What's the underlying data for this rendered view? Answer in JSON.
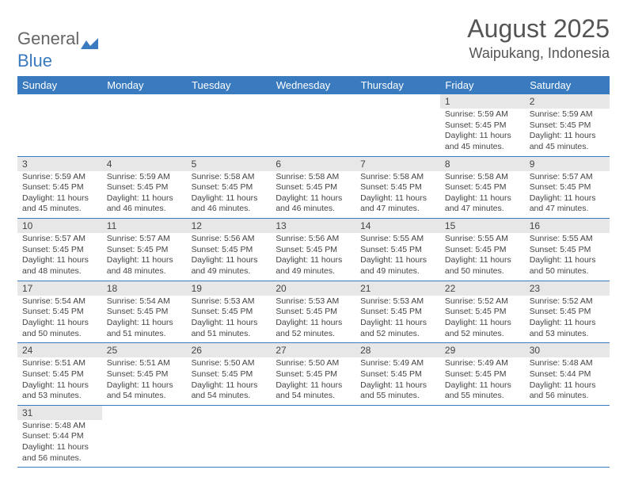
{
  "logo": {
    "text1": "General",
    "text2": "Blue"
  },
  "title": "August 2025",
  "location": "Waipukang, Indonesia",
  "colors": {
    "header_bg": "#3a7bbf",
    "header_text": "#ffffff",
    "daynum_bg": "#e7e7e7",
    "border": "#3a7bbf",
    "text": "#444444",
    "page_bg": "#ffffff"
  },
  "fonts": {
    "title_size": 32,
    "location_size": 18,
    "header_size": 13,
    "daynum_size": 12,
    "body_size": 10.5
  },
  "weekdays": [
    "Sunday",
    "Monday",
    "Tuesday",
    "Wednesday",
    "Thursday",
    "Friday",
    "Saturday"
  ],
  "weeks": [
    [
      null,
      null,
      null,
      null,
      null,
      {
        "n": "1",
        "sr": "5:59 AM",
        "ss": "5:45 PM",
        "dl": "11 hours and 45 minutes."
      },
      {
        "n": "2",
        "sr": "5:59 AM",
        "ss": "5:45 PM",
        "dl": "11 hours and 45 minutes."
      }
    ],
    [
      {
        "n": "3",
        "sr": "5:59 AM",
        "ss": "5:45 PM",
        "dl": "11 hours and 45 minutes."
      },
      {
        "n": "4",
        "sr": "5:59 AM",
        "ss": "5:45 PM",
        "dl": "11 hours and 46 minutes."
      },
      {
        "n": "5",
        "sr": "5:58 AM",
        "ss": "5:45 PM",
        "dl": "11 hours and 46 minutes."
      },
      {
        "n": "6",
        "sr": "5:58 AM",
        "ss": "5:45 PM",
        "dl": "11 hours and 46 minutes."
      },
      {
        "n": "7",
        "sr": "5:58 AM",
        "ss": "5:45 PM",
        "dl": "11 hours and 47 minutes."
      },
      {
        "n": "8",
        "sr": "5:58 AM",
        "ss": "5:45 PM",
        "dl": "11 hours and 47 minutes."
      },
      {
        "n": "9",
        "sr": "5:57 AM",
        "ss": "5:45 PM",
        "dl": "11 hours and 47 minutes."
      }
    ],
    [
      {
        "n": "10",
        "sr": "5:57 AM",
        "ss": "5:45 PM",
        "dl": "11 hours and 48 minutes."
      },
      {
        "n": "11",
        "sr": "5:57 AM",
        "ss": "5:45 PM",
        "dl": "11 hours and 48 minutes."
      },
      {
        "n": "12",
        "sr": "5:56 AM",
        "ss": "5:45 PM",
        "dl": "11 hours and 49 minutes."
      },
      {
        "n": "13",
        "sr": "5:56 AM",
        "ss": "5:45 PM",
        "dl": "11 hours and 49 minutes."
      },
      {
        "n": "14",
        "sr": "5:55 AM",
        "ss": "5:45 PM",
        "dl": "11 hours and 49 minutes."
      },
      {
        "n": "15",
        "sr": "5:55 AM",
        "ss": "5:45 PM",
        "dl": "11 hours and 50 minutes."
      },
      {
        "n": "16",
        "sr": "5:55 AM",
        "ss": "5:45 PM",
        "dl": "11 hours and 50 minutes."
      }
    ],
    [
      {
        "n": "17",
        "sr": "5:54 AM",
        "ss": "5:45 PM",
        "dl": "11 hours and 50 minutes."
      },
      {
        "n": "18",
        "sr": "5:54 AM",
        "ss": "5:45 PM",
        "dl": "11 hours and 51 minutes."
      },
      {
        "n": "19",
        "sr": "5:53 AM",
        "ss": "5:45 PM",
        "dl": "11 hours and 51 minutes."
      },
      {
        "n": "20",
        "sr": "5:53 AM",
        "ss": "5:45 PM",
        "dl": "11 hours and 52 minutes."
      },
      {
        "n": "21",
        "sr": "5:53 AM",
        "ss": "5:45 PM",
        "dl": "11 hours and 52 minutes."
      },
      {
        "n": "22",
        "sr": "5:52 AM",
        "ss": "5:45 PM",
        "dl": "11 hours and 52 minutes."
      },
      {
        "n": "23",
        "sr": "5:52 AM",
        "ss": "5:45 PM",
        "dl": "11 hours and 53 minutes."
      }
    ],
    [
      {
        "n": "24",
        "sr": "5:51 AM",
        "ss": "5:45 PM",
        "dl": "11 hours and 53 minutes."
      },
      {
        "n": "25",
        "sr": "5:51 AM",
        "ss": "5:45 PM",
        "dl": "11 hours and 54 minutes."
      },
      {
        "n": "26",
        "sr": "5:50 AM",
        "ss": "5:45 PM",
        "dl": "11 hours and 54 minutes."
      },
      {
        "n": "27",
        "sr": "5:50 AM",
        "ss": "5:45 PM",
        "dl": "11 hours and 54 minutes."
      },
      {
        "n": "28",
        "sr": "5:49 AM",
        "ss": "5:45 PM",
        "dl": "11 hours and 55 minutes."
      },
      {
        "n": "29",
        "sr": "5:49 AM",
        "ss": "5:45 PM",
        "dl": "11 hours and 55 minutes."
      },
      {
        "n": "30",
        "sr": "5:48 AM",
        "ss": "5:44 PM",
        "dl": "11 hours and 56 minutes."
      }
    ],
    [
      {
        "n": "31",
        "sr": "5:48 AM",
        "ss": "5:44 PM",
        "dl": "11 hours and 56 minutes."
      },
      null,
      null,
      null,
      null,
      null,
      null
    ]
  ],
  "labels": {
    "sunrise": "Sunrise:",
    "sunset": "Sunset:",
    "daylight": "Daylight:"
  }
}
